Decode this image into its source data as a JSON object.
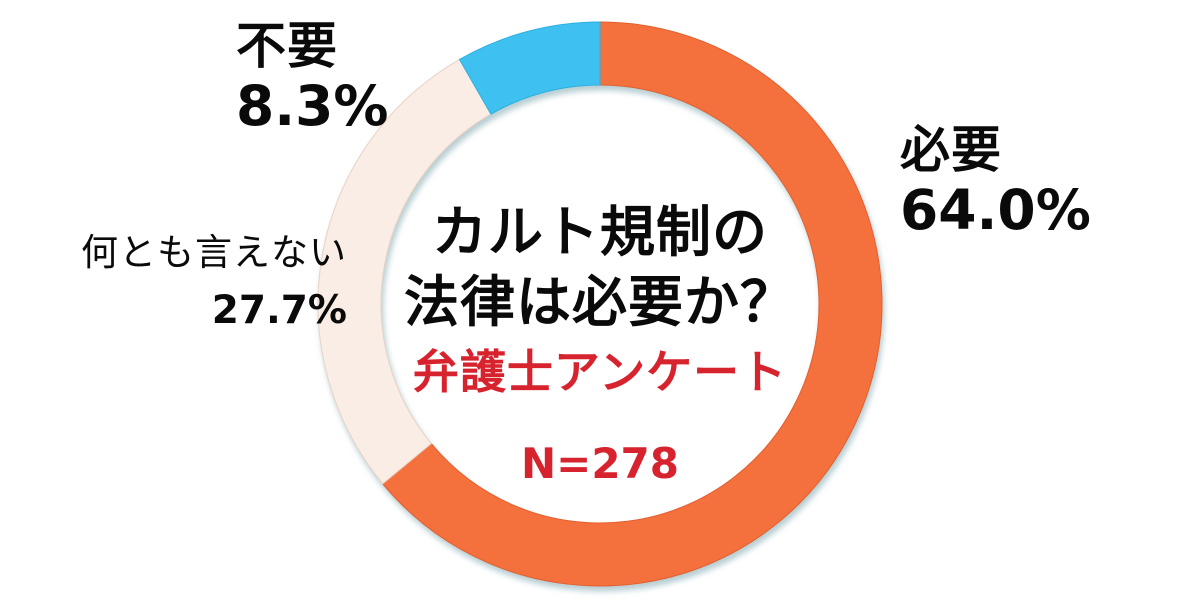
{
  "chart_data": {
    "type": "pie",
    "donut": true,
    "title": "カルト規制の法律は必要か？",
    "title_line1": "カルト規制の",
    "title_line2": "法律は必要か？",
    "subtitle": "弁護士アンケート",
    "sample_note": "N=278",
    "start_angle_deg": 0,
    "direction": "clockwise",
    "categories": [
      "必要",
      "何とも言えない",
      "不要"
    ],
    "values": [
      64.0,
      27.7,
      8.3
    ],
    "value_labels": [
      "64.0%",
      "27.7%",
      "8.3%"
    ],
    "segment_keys": [
      "necessary",
      "neutral",
      "unnecessary"
    ],
    "colors": [
      "#F4713D",
      "#FAEDE5",
      "#3EC1F0"
    ],
    "edge_colors": [
      "#E2602E",
      "#E9D2C4",
      "#2BAFE0"
    ],
    "legend_position": "around-chart"
  },
  "labels": {
    "necessary": {
      "name": "必要",
      "pct": "64.0%"
    },
    "neutral": {
      "name": "何とも言えない",
      "pct": "27.7%"
    },
    "unnecessary": {
      "name": "不要",
      "pct": "8.3%"
    }
  },
  "colors": {
    "accent_red": "#D7232D",
    "text_black": "#0A0A0A",
    "background": "#FFFFFF",
    "shadow": "rgba(125,165,175,0.55)"
  }
}
